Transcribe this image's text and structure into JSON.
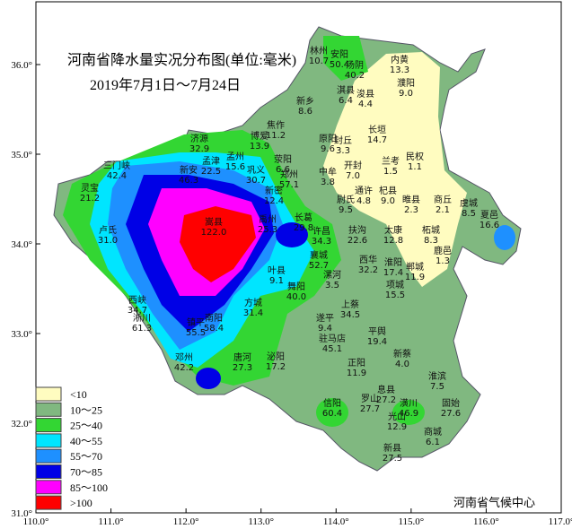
{
  "map": {
    "title": "河南省降水量实况分布图(单位:毫米)",
    "subtitle": "2019年7月1日～7月24日",
    "credit": "河南省气候中心",
    "xlim": [
      110,
      117
    ],
    "ylim": [
      31,
      36.7
    ],
    "xticks": [
      {
        "value": 110,
        "label": "110.0°"
      },
      {
        "value": 111,
        "label": "111.0°"
      },
      {
        "value": 112,
        "label": "112.0°"
      },
      {
        "value": 113,
        "label": "113.0°"
      },
      {
        "value": 114,
        "label": "114.0°"
      },
      {
        "value": 115,
        "label": "115.0°"
      },
      {
        "value": 116,
        "label": "116.0°"
      },
      {
        "value": 117,
        "label": "117.0°"
      }
    ],
    "yticks": [
      {
        "value": 31,
        "label": "31.0°"
      },
      {
        "value": 32,
        "label": "32.0°"
      },
      {
        "value": 33,
        "label": "33.0°"
      },
      {
        "value": 34,
        "label": "34.0°"
      },
      {
        "value": 35,
        "label": "35.0°"
      },
      {
        "value": 36,
        "label": "36.0°"
      }
    ],
    "legend": [
      {
        "label": "<10",
        "color": "#fffcc0"
      },
      {
        "label": "10～25",
        "color": "#80b880"
      },
      {
        "label": "25～40",
        "color": "#33d633"
      },
      {
        "label": "40～55",
        "color": "#00e5ff"
      },
      {
        "label": "55～70",
        "color": "#1e90ff"
      },
      {
        "label": "70～85",
        "color": "#0000e6"
      },
      {
        "label": "85～100",
        "color": "#ff00ff"
      },
      {
        "label": ">100",
        "color": "#ff0000"
      }
    ],
    "stations": [
      {
        "name": "林州",
        "value": "10.7"
      },
      {
        "name": "安阳",
        "value": "50.4"
      },
      {
        "name": "汤阴",
        "value": "40.2"
      },
      {
        "name": "内黄",
        "value": "13.3"
      },
      {
        "name": "濮阳",
        "value": "9.0"
      },
      {
        "name": "淇县",
        "value": "6.4"
      },
      {
        "name": "浚县",
        "value": "4.4"
      },
      {
        "name": "新乡",
        "value": "8.6"
      },
      {
        "name": "焦作",
        "value": "11.2"
      },
      {
        "name": "博爱",
        "value": "13.9"
      },
      {
        "name": "原阳",
        "value": "9.6"
      },
      {
        "name": "封丘",
        "value": "3.3"
      },
      {
        "name": "长垣",
        "value": "14.7"
      },
      {
        "name": "济源",
        "value": "32.9"
      },
      {
        "name": "孟州",
        "value": "15.6"
      },
      {
        "name": "孟津",
        "value": "22.5"
      },
      {
        "name": "巩义",
        "value": "30.7"
      },
      {
        "name": "荥阳",
        "value": "6.6"
      },
      {
        "name": "郑州",
        "value": "57.1"
      },
      {
        "name": "中牟",
        "value": "3.8"
      },
      {
        "name": "开封",
        "value": "7.0"
      },
      {
        "name": "兰考",
        "value": "1.5"
      },
      {
        "name": "民权",
        "value": "1.1"
      },
      {
        "name": "三门峡",
        "value": "42.4"
      },
      {
        "name": "灵宝",
        "value": "21.2"
      },
      {
        "name": "新安",
        "value": "46.3"
      },
      {
        "name": "卢氏",
        "value": "31.0"
      },
      {
        "name": "新密",
        "value": "12.4"
      },
      {
        "name": "尉氏",
        "value": "9.5"
      },
      {
        "name": "通许",
        "value": "4.8"
      },
      {
        "name": "杞县",
        "value": "9.0"
      },
      {
        "name": "睢县",
        "value": "2.3"
      },
      {
        "name": "商丘",
        "value": "2.1"
      },
      {
        "name": "虞城",
        "value": "8.5"
      },
      {
        "name": "夏邑",
        "value": "16.6"
      },
      {
        "name": "嵩县",
        "value": "122.0"
      },
      {
        "name": "禹州",
        "value": "25.3"
      },
      {
        "name": "长葛",
        "value": "29.8"
      },
      {
        "name": "许昌",
        "value": "34.3"
      },
      {
        "name": "扶沟",
        "value": "22.6"
      },
      {
        "name": "太康",
        "value": "12.8"
      },
      {
        "name": "柘城",
        "value": "8.3"
      },
      {
        "name": "鹿邑",
        "value": "1.3"
      },
      {
        "name": "襄城",
        "value": "52.7"
      },
      {
        "name": "西华",
        "value": "32.2"
      },
      {
        "name": "淮阳",
        "value": "17.4"
      },
      {
        "name": "郸城",
        "value": "11.9"
      },
      {
        "name": "叶县",
        "value": "9.1"
      },
      {
        "name": "舞阳",
        "value": "40.0"
      },
      {
        "name": "漯河",
        "value": "3.5"
      },
      {
        "name": "项城",
        "value": "15.5"
      },
      {
        "name": "西峡",
        "value": "34.7"
      },
      {
        "name": "淅川",
        "value": "61.3"
      },
      {
        "name": "镇平",
        "value": "55.5"
      },
      {
        "name": "南阳",
        "value": "58.4"
      },
      {
        "name": "方城",
        "value": "31.4"
      },
      {
        "name": "上蔡",
        "value": "34.5"
      },
      {
        "name": "遂平",
        "value": "9.4"
      },
      {
        "name": "平舆",
        "value": "19.4"
      },
      {
        "name": "驻马店",
        "value": "45.1"
      },
      {
        "name": "邓州",
        "value": "42.2"
      },
      {
        "name": "唐河",
        "value": "27.3"
      },
      {
        "name": "泌阳",
        "value": "17.2"
      },
      {
        "name": "正阳",
        "value": "11.9"
      },
      {
        "name": "新蔡",
        "value": "4.0"
      },
      {
        "name": "息县",
        "value": "27.2"
      },
      {
        "name": "淮滨",
        "value": "7.5"
      },
      {
        "name": "罗山",
        "value": "27.7"
      },
      {
        "name": "潢川",
        "value": "46.9"
      },
      {
        "name": "固始",
        "value": "27.6"
      },
      {
        "name": "信阳",
        "value": "60.4"
      },
      {
        "name": "光山",
        "value": "12.9"
      },
      {
        "name": "商城",
        "value": "6.1"
      },
      {
        "name": "新县",
        "value": "27.5"
      }
    ]
  }
}
